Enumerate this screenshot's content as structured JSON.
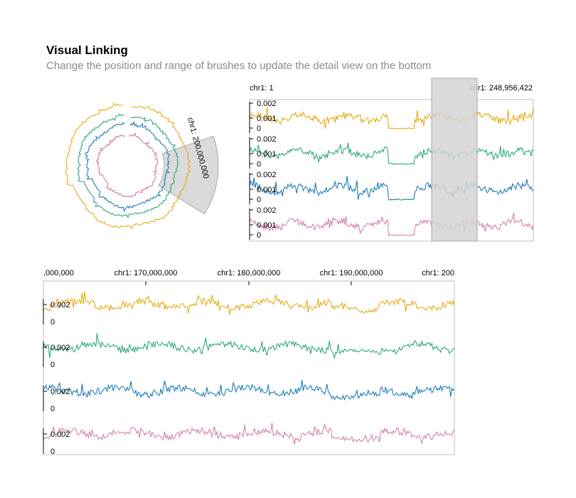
{
  "header": {
    "title": "Visual Linking",
    "subtitle": "Change the position and range of brushes to update the detail view on the bottom"
  },
  "colors": {
    "series": [
      "#e5a300",
      "#1a9e77",
      "#0a72b2",
      "#cc79a7"
    ],
    "brush_fill": "#d4d4d4",
    "brush_stroke": "#a8a8a8",
    "axis": "#000000"
  },
  "circular_view": {
    "brush_label": "chr1: 200,000,000"
  },
  "linear_overview": {
    "x_start_label": "chr1: 1",
    "x_end_label": "chr1: 248,956,422",
    "tracks": [
      {
        "tick_top": "0.002",
        "tick_mid": "0.001",
        "tick_zero": "0"
      },
      {
        "tick_top": "0.002",
        "tick_mid": "0.001",
        "tick_zero": "0"
      },
      {
        "tick_top": "0.002",
        "tick_mid": "0.001",
        "tick_zero": "0"
      },
      {
        "tick_top": "0.002",
        "tick_mid": "0.001",
        "tick_zero": "0"
      }
    ]
  },
  "detail_view": {
    "x_tick_labels": [
      ",000,000",
      "chr1: 170,000,000",
      "chr1: 180,000,000",
      "chr1: 190,000,000",
      "chr1: 200"
    ],
    "tracks": [
      {
        "tick_top": "0.002",
        "tick_zero": "0"
      },
      {
        "tick_top": "0.002",
        "tick_zero": "0"
      },
      {
        "tick_top": "0.002",
        "tick_zero": "0"
      },
      {
        "tick_top": "0.002",
        "tick_zero": "0"
      }
    ]
  },
  "chart_data": [
    {
      "type": "area",
      "view": "circular overview",
      "series_count": 4,
      "brush": {
        "label": "chr1: 200,000,000"
      }
    },
    {
      "type": "line",
      "view": "linear overview",
      "x_domain": [
        1,
        248956422
      ],
      "ylim": [
        0,
        0.0025
      ],
      "brush_range": [
        160000000,
        203000000
      ],
      "series_count": 4
    },
    {
      "type": "line",
      "view": "detail",
      "x_domain": [
        160000000,
        200000000
      ],
      "x_ticks": [
        160000000,
        170000000,
        180000000,
        190000000,
        200000000
      ],
      "ylim": [
        0,
        0.0025
      ],
      "series_count": 4
    }
  ]
}
